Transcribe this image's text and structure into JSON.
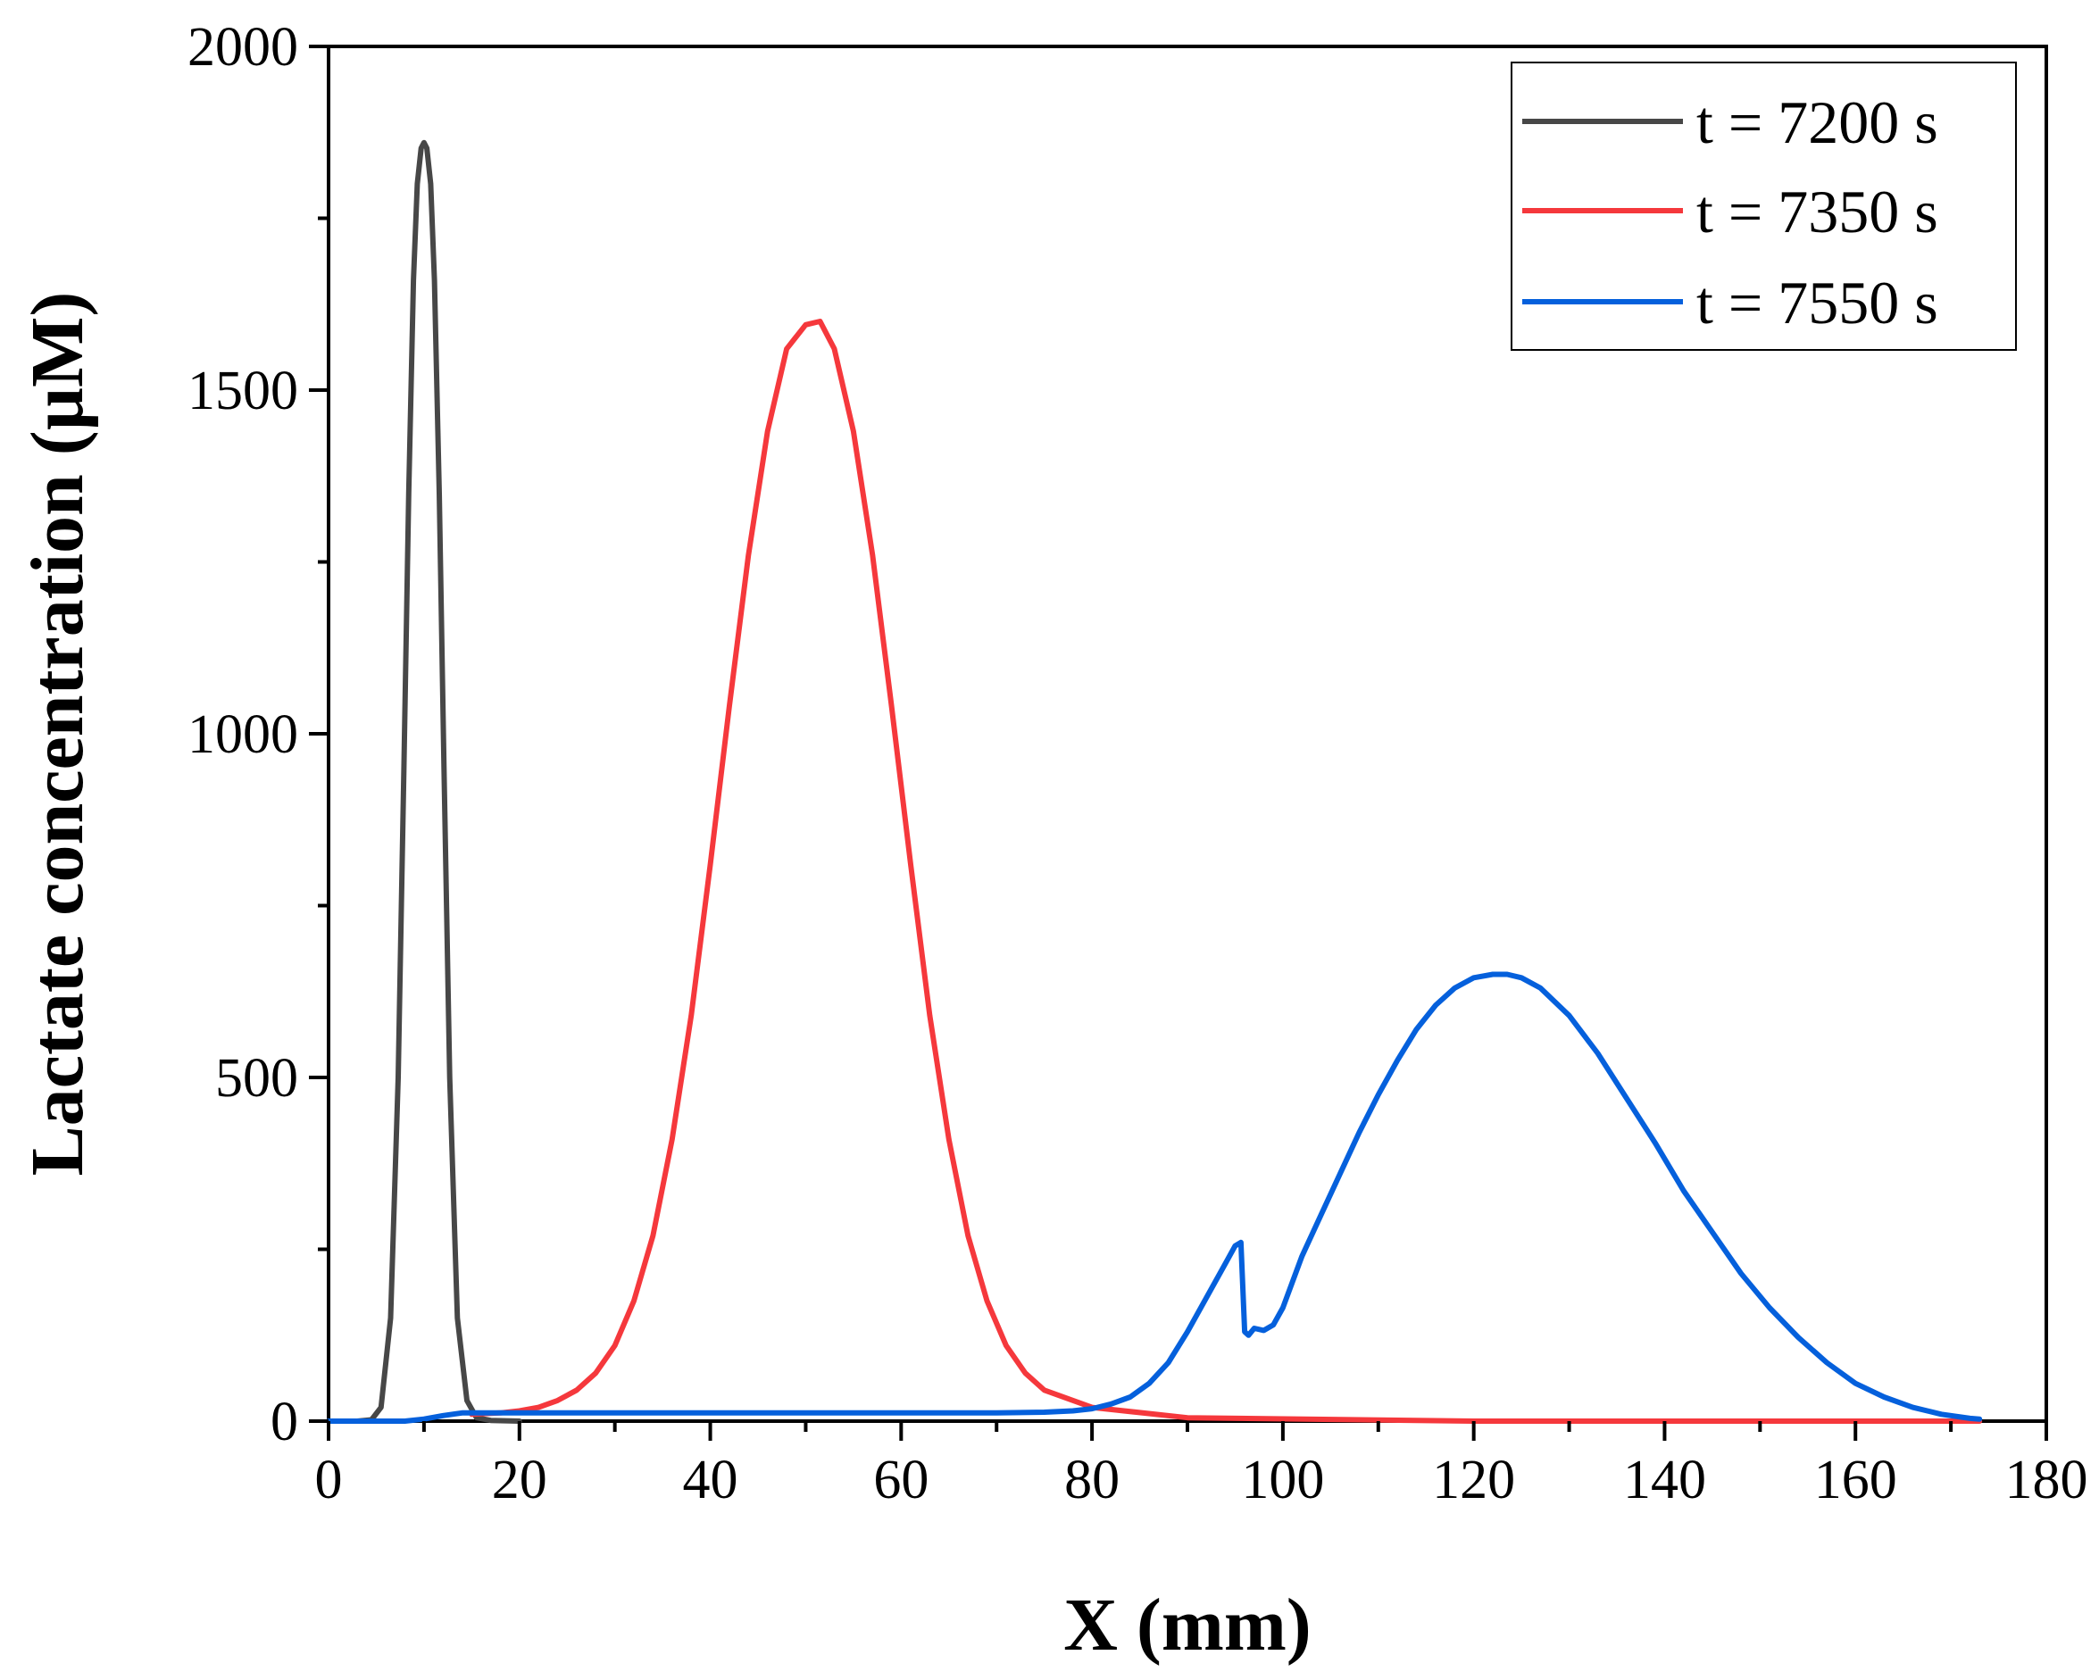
{
  "chart_data": {
    "type": "line",
    "title": "",
    "xlabel": "X (mm)",
    "ylabel": "Lactate concentration (µM)",
    "xlim": [
      0,
      180
    ],
    "ylim": [
      0,
      2000
    ],
    "xticks": [
      "0",
      "20",
      "40",
      "60",
      "80",
      "100",
      "120",
      "140",
      "160",
      "180"
    ],
    "yticks": [
      "0",
      "500",
      "1000",
      "1500",
      "2000"
    ],
    "grid": false,
    "legend_position": "top-right",
    "series": [
      {
        "name": "t = 7200 s",
        "color": "#474747",
        "x": [
          0,
          3,
          4.5,
          5.5,
          6.5,
          7.3,
          7.9,
          8.4,
          8.9,
          9.3,
          9.7,
          10,
          10.3,
          10.7,
          11.1,
          11.6,
          12.1,
          12.7,
          13.5,
          14.5,
          15.5,
          17,
          20
        ],
        "y": [
          0,
          0,
          2,
          20,
          150,
          500,
          950,
          1350,
          1660,
          1800,
          1852,
          1860,
          1852,
          1800,
          1660,
          1350,
          950,
          500,
          150,
          30,
          5,
          1,
          0
        ]
      },
      {
        "name": "t = 7350 s",
        "color": "#f5383c",
        "x": [
          15,
          18,
          20,
          22,
          24,
          26,
          28,
          30,
          32,
          34,
          36,
          38,
          40,
          42,
          44,
          46,
          48,
          50,
          51.5,
          53,
          55,
          57,
          59,
          61,
          63,
          65,
          67,
          69,
          71,
          73,
          75,
          80,
          90,
          120,
          150,
          173
        ],
        "y": [
          10,
          12,
          15,
          20,
          30,
          45,
          70,
          110,
          175,
          270,
          410,
          590,
          810,
          1040,
          1260,
          1440,
          1560,
          1595,
          1600,
          1560,
          1440,
          1260,
          1040,
          810,
          590,
          410,
          270,
          175,
          110,
          70,
          45,
          20,
          5,
          0,
          0,
          0
        ]
      },
      {
        "name": "t = 7550 s",
        "color": "#0560dc",
        "x": [
          0,
          8,
          10,
          12,
          14,
          20,
          40,
          60,
          70,
          75,
          78,
          80,
          82,
          84,
          86,
          88,
          90,
          92,
          94,
          95,
          95.6,
          96,
          96.4,
          97,
          98,
          99,
          100,
          102,
          104,
          106,
          108,
          110,
          112,
          114,
          116,
          118,
          120,
          122,
          123.5,
          125,
          127,
          130,
          133,
          136,
          139,
          142,
          145,
          148,
          151,
          154,
          157,
          160,
          163,
          166,
          169,
          172,
          173
        ],
        "y": [
          0,
          0,
          3,
          8,
          12,
          12,
          12,
          12,
          12,
          13,
          15,
          18,
          25,
          35,
          55,
          85,
          130,
          180,
          230,
          255,
          260,
          130,
          125,
          135,
          132,
          140,
          165,
          240,
          300,
          360,
          420,
          475,
          525,
          570,
          605,
          630,
          645,
          650,
          650,
          645,
          630,
          590,
          535,
          470,
          405,
          335,
          275,
          215,
          165,
          122,
          85,
          55,
          35,
          20,
          10,
          4,
          3
        ]
      }
    ]
  }
}
